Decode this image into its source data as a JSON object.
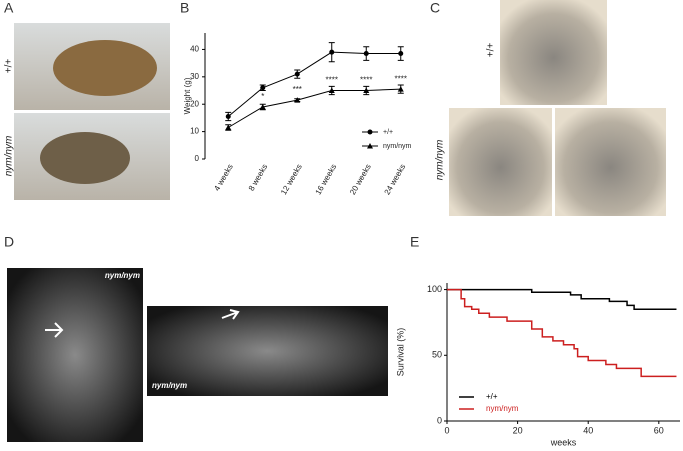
{
  "panel_labels": [
    "A",
    "B",
    "C",
    "D",
    "E"
  ],
  "image_labels": [
    "+/+",
    "nym/nym",
    "+/+",
    "nym/nym",
    "nym/nym",
    "nym/nym"
  ],
  "chart_data": [
    {
      "type": "line",
      "y_label": "Weight (g)",
      "categories": [
        "4 weeks",
        "8 weeks",
        "12 weeks",
        "16 weeks",
        "20 weeks",
        "24 weeks"
      ],
      "series": [
        {
          "name": "+/+",
          "color": "#000000",
          "marker": "circle",
          "values": [
            15.5,
            26,
            31,
            39,
            38.5,
            38.5
          ],
          "errors": [
            1.5,
            1,
            1.5,
            3.5,
            2.5,
            2.5
          ]
        },
        {
          "name": "nym/nym",
          "color": "#000000",
          "marker": "triangle",
          "values": [
            11.5,
            19,
            21.5,
            25,
            25,
            25.5
          ],
          "errors": [
            1,
            1,
            0.5,
            1.5,
            1.5,
            1.5
          ]
        }
      ],
      "significance": [
        null,
        "*",
        "***",
        "****",
        "****",
        "****"
      ],
      "ylim": [
        0,
        46
      ],
      "yticks": [
        0,
        10,
        20,
        30,
        40
      ]
    },
    {
      "type": "step",
      "x_label": "weeks",
      "y_label": "Survival (%)",
      "series": [
        {
          "name": "+/+",
          "color": "#000000",
          "x": [
            0,
            24,
            35,
            38,
            46,
            51,
            53,
            65
          ],
          "values": [
            100,
            98,
            96,
            93,
            91,
            88,
            85,
            85
          ]
        },
        {
          "name": "nym/nym",
          "color": "#cc1f1f",
          "x": [
            0,
            4,
            5,
            7,
            9,
            12,
            17,
            24,
            27,
            30,
            33,
            36,
            37,
            40,
            45,
            48,
            55,
            65
          ],
          "values": [
            100,
            93,
            87,
            85,
            82,
            79,
            76,
            70,
            64,
            61,
            58,
            55,
            49,
            46,
            43,
            40,
            34,
            34
          ]
        }
      ],
      "xlim": [
        0,
        66
      ],
      "xticks": [
        0,
        20,
        40,
        60
      ],
      "ylim": [
        0,
        105
      ],
      "yticks": [
        0,
        50,
        100
      ]
    }
  ]
}
